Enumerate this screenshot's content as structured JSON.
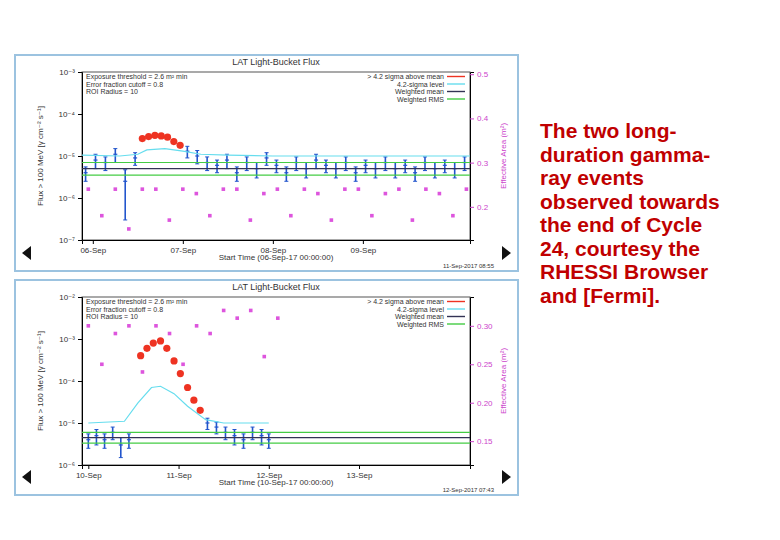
{
  "chart_data": [
    {
      "type": "scatter",
      "title": "LAT Light-Bucket Flux",
      "x_label": "Start Time (06-Sep-17 00:00:00)",
      "y_label": "Flux > 100 MeV [γ cm⁻² s⁻¹]",
      "y2_label": "Effective Area (m²)",
      "annotations": [
        "Exposure threshold = 2.6 m² min",
        "Error fraction cutoff = 0.8",
        "ROI Radius = 10"
      ],
      "footer": "11-Sep-2017 08:55",
      "log": "y",
      "legend": "upper right",
      "xlim": [
        -0.12,
        4.19
      ],
      "xticks": [
        {
          "value": 0,
          "label": "06-Sep"
        },
        {
          "value": 1,
          "label": "07-Sep"
        },
        {
          "value": 2,
          "label": "08-Sep"
        },
        {
          "value": 3,
          "label": "09-Sep"
        }
      ],
      "ylim": [
        1e-07,
        0.001
      ],
      "yticks": [
        {
          "value": 1e-07,
          "label": "10⁻⁷"
        },
        {
          "value": 1e-06,
          "label": "10⁻⁶"
        },
        {
          "value": 1e-05,
          "label": "10⁻⁵"
        },
        {
          "value": 0.0001,
          "label": "10⁻⁴"
        },
        {
          "value": 0.001,
          "label": "10⁻³"
        }
      ],
      "y2lim": [
        0.125,
        0.505
      ],
      "y2ticks": [
        0.2,
        0.3,
        0.4,
        0.5
      ],
      "series": [
        {
          "name": "> 4.2 sigma above mean",
          "type": "scatter",
          "marker": "circle",
          "color": "#ee3322",
          "x": [
            0.55,
            0.62,
            0.69,
            0.76,
            0.83,
            0.9,
            0.97
          ],
          "values": [
            2.6e-05,
            2.9e-05,
            3.1e-05,
            3e-05,
            2.8e-05,
            2.2e-05,
            1.8e-05
          ]
        },
        {
          "type": "scatter",
          "marker": "errorbar",
          "color": "#2255cc",
          "x": [
            -0.08,
            0.03,
            0.14,
            0.25,
            0.36,
            0.47,
            1.05,
            1.16,
            1.27,
            1.38,
            1.49,
            1.6,
            1.71,
            1.82,
            1.93,
            2.04,
            2.15,
            2.26,
            2.37,
            2.48,
            2.59,
            2.7,
            2.81,
            2.92,
            3.03,
            3.14,
            3.25,
            3.36,
            3.47,
            3.58,
            3.69,
            3.8,
            3.91,
            4.02,
            4.13
          ],
          "values": [
            4e-06,
            8e-06,
            7e-06,
            1.1e-05,
            2.5e-06,
            9e-06,
            1.3e-05,
            1e-05,
            7e-06,
            6e-06,
            8e-06,
            4e-06,
            7e-06,
            5e-06,
            9e-06,
            6e-06,
            4e-06,
            7e-06,
            5e-06,
            8e-06,
            6e-06,
            5e-06,
            7e-06,
            4e-06,
            6e-06,
            5e-06,
            7e-06,
            5e-06,
            6e-06,
            4e-06,
            7e-06,
            5e-06,
            6e-06,
            5e-06,
            7e-06
          ],
          "errors": [
            1.5e-06,
            3e-06,
            2.5e-06,
            4e-06,
            2.2e-06,
            3e-06,
            4e-06,
            3.5e-06,
            2.5e-06,
            2e-06,
            3e-06,
            1.5e-06,
            2.5e-06,
            2e-06,
            3e-06,
            2e-06,
            1.5e-06,
            2.5e-06,
            2e-06,
            3e-06,
            2e-06,
            2e-06,
            2.5e-06,
            1.5e-06,
            2e-06,
            2e-06,
            2.5e-06,
            2e-06,
            2e-06,
            1.5e-06,
            2.5e-06,
            2e-06,
            2e-06,
            2e-06,
            2.5e-06
          ]
        },
        {
          "name": "4.2-sigma level",
          "type": "line",
          "line_style": "solid",
          "color": "#66ddee",
          "x": [
            -0.12,
            0.3,
            0.5,
            0.6,
            0.8,
            1.0,
            1.2,
            1.5,
            2.0,
            2.5,
            3.0,
            3.5,
            4.19
          ],
          "values": [
            1.05e-05,
            1e-05,
            1.1e-05,
            1.4e-05,
            1.5e-05,
            1.3e-05,
            1.1e-05,
            1.05e-05,
            1e-05,
            1e-05,
            1e-05,
            1e-05,
            1e-05
          ]
        },
        {
          "name": "Weighted mean",
          "type": "line",
          "line_style": "solid",
          "color": "#333355",
          "x": [
            -0.12,
            4.19
          ],
          "values": [
            5e-06,
            5e-06
          ]
        },
        {
          "name": "Weighted RMS",
          "type": "line",
          "line_style": "solid",
          "color": "#44cc44",
          "x": [
            -0.12,
            4.19
          ],
          "values": [
            7e-06,
            7e-06
          ]
        },
        {
          "type": "line",
          "line_style": "solid",
          "color": "#44cc44",
          "x": [
            -0.12,
            4.19
          ],
          "values": [
            3.5e-06,
            3.5e-06
          ]
        },
        {
          "type": "scatter",
          "marker": "square",
          "color": "#dd55dd",
          "axis": "y2",
          "x": [
            -0.05,
            0.1,
            0.25,
            0.4,
            0.55,
            0.7,
            0.85,
            1.0,
            1.15,
            1.3,
            1.45,
            1.6,
            1.75,
            1.9,
            2.05,
            2.2,
            2.35,
            2.5,
            2.65,
            2.8,
            2.95,
            3.1,
            3.25,
            3.4,
            3.55,
            3.7,
            3.85,
            4.0,
            4.15
          ],
          "values": [
            0.24,
            0.18,
            0.24,
            0.15,
            0.24,
            0.24,
            0.17,
            0.24,
            0.23,
            0.18,
            0.24,
            0.24,
            0.17,
            0.23,
            0.24,
            0.18,
            0.24,
            0.23,
            0.17,
            0.24,
            0.24,
            0.18,
            0.23,
            0.24,
            0.17,
            0.24,
            0.23,
            0.18,
            0.24
          ]
        }
      ]
    },
    {
      "type": "scatter",
      "title": "LAT Light-Bucket Flux",
      "x_label": "Start Time (10-Sep-17 00:00:00)",
      "y_label": "Flux > 100 MeV [γ cm⁻² s⁻¹]",
      "y2_label": "Effective Area (m²)",
      "annotations": [
        "Exposure threshold = 2.6 m² min",
        "Error fraction cutoff = 0.8",
        "ROI Radius = 10"
      ],
      "footer": "12-Sep-2017 07:43",
      "log": "y",
      "legend": "upper right",
      "xlim": [
        -0.07,
        4.23
      ],
      "xticks": [
        {
          "value": 0,
          "label": "10-Sep"
        },
        {
          "value": 1,
          "label": "11-Sep"
        },
        {
          "value": 2,
          "label": "12-Sep"
        },
        {
          "value": 3,
          "label": "13-Sep"
        }
      ],
      "ylim": [
        1e-06,
        0.01
      ],
      "yticks": [
        {
          "value": 1e-06,
          "label": "10⁻⁶"
        },
        {
          "value": 1e-05,
          "label": "10⁻⁵"
        },
        {
          "value": 0.0001,
          "label": "10⁻⁴"
        },
        {
          "value": 0.001,
          "label": "10⁻³"
        },
        {
          "value": 0.01,
          "label": "10⁻²"
        }
      ],
      "y2lim": [
        0.119,
        0.3375
      ],
      "y2ticks": [
        0.15,
        {
          "value": 0.2,
          "label": "0.20"
        },
        0.25,
        {
          "value": 0.3,
          "label": "0.30"
        }
      ],
      "series": [
        {
          "name": "> 4.2 sigma above mean",
          "type": "scatter",
          "marker": "circle",
          "color": "#ee3322",
          "x": [
            0.58,
            0.65,
            0.72,
            0.8,
            0.87,
            0.95,
            1.02,
            1.1,
            1.17,
            1.24
          ],
          "values": [
            0.0004,
            0.0006,
            0.0008,
            0.0009,
            0.0006,
            0.0003,
            0.00015,
            7e-05,
            3.5e-05,
            2e-05
          ]
        },
        {
          "type": "scatter",
          "marker": "errorbar",
          "color": "#2255cc",
          "x": [
            0.0,
            0.09,
            0.18,
            0.27,
            0.36,
            0.45,
            1.32,
            1.42,
            1.52,
            1.62,
            1.72,
            1.82,
            1.92,
            2.0
          ],
          "values": [
            4e-06,
            5e-06,
            4e-06,
            6e-06,
            3e-06,
            4e-06,
            1e-05,
            8e-06,
            6e-06,
            5e-06,
            4e-06,
            6e-06,
            5e-06,
            4e-06
          ],
          "errors": [
            1.5e-06,
            2e-06,
            1.5e-06,
            2e-06,
            1.5e-06,
            1.5e-06,
            3e-06,
            2.5e-06,
            2e-06,
            2e-06,
            1.5e-06,
            2e-06,
            2e-06,
            1.5e-06
          ]
        },
        {
          "name": "4.2-sigma level",
          "type": "line",
          "line_style": "solid",
          "color": "#66ddee",
          "x": [
            0.0,
            0.4,
            0.55,
            0.7,
            0.8,
            0.95,
            1.1,
            1.3,
            1.5,
            2.0
          ],
          "values": [
            1e-05,
            1.1e-05,
            3e-05,
            7e-05,
            7.5e-05,
            5e-05,
            2.5e-05,
            1.2e-05,
            1e-05,
            1e-05
          ]
        },
        {
          "name": "Weighted mean",
          "type": "line",
          "line_style": "solid",
          "color": "#333355",
          "x": [
            -0.07,
            4.23
          ],
          "values": [
            4.5e-06,
            4.5e-06
          ]
        },
        {
          "name": "Weighted RMS",
          "type": "line",
          "line_style": "solid",
          "color": "#44cc44",
          "x": [
            -0.07,
            4.23
          ],
          "values": [
            6e-06,
            6e-06
          ]
        },
        {
          "type": "line",
          "line_style": "solid",
          "color": "#44cc44",
          "x": [
            -0.07,
            4.23
          ],
          "values": [
            3.3e-06,
            3.3e-06
          ]
        },
        {
          "type": "scatter",
          "marker": "square",
          "color": "#dd55dd",
          "axis": "y2",
          "x": [
            0.0,
            0.15,
            0.3,
            0.45,
            0.6,
            0.75,
            0.9,
            1.05,
            1.2,
            1.35,
            1.5,
            1.65,
            1.8,
            1.95,
            2.1
          ],
          "values": [
            0.3,
            0.25,
            0.29,
            0.3,
            0.24,
            0.3,
            0.29,
            0.25,
            0.3,
            0.29,
            0.32,
            0.31,
            0.32,
            0.26,
            0.31
          ]
        }
      ]
    }
  ],
  "caption": [
    "The two long-",
    "duration gamma-",
    "ray events",
    "observed towards",
    "the end of Cycle",
    "24, courtesy the",
    "RHESSI Browser",
    "and [Fermi]."
  ]
}
